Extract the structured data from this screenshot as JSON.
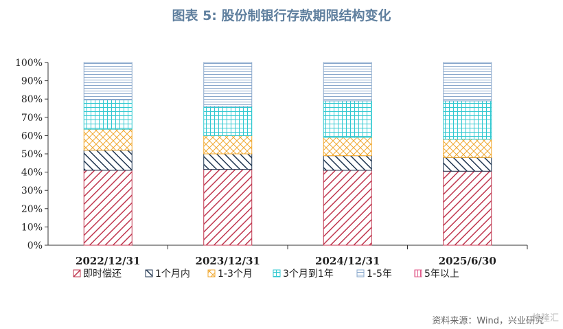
{
  "title": "图表 5:  股份制银行存款期限结构变化",
  "source": "资料来源：Wind，兴业研究",
  "watermark": "格隆汇",
  "chart_data": {
    "type": "bar",
    "stacked": true,
    "categories": [
      "2022/12/31",
      "2023/12/31",
      "2024/12/31",
      "2025/6/30"
    ],
    "ylim": [
      0,
      100
    ],
    "yticks": [
      "0%",
      "10%",
      "20%",
      "30%",
      "40%",
      "50%",
      "60%",
      "70%",
      "80%",
      "90%",
      "100%"
    ],
    "legend_position": "bottom",
    "series": [
      {
        "name": "即时偿还",
        "values": [
          41,
          41.5,
          41,
          40.5
        ],
        "color": "#c0374f",
        "pattern": "diag-down"
      },
      {
        "name": "1个月内",
        "values": [
          11,
          8.5,
          8,
          7.5
        ],
        "color": "#1f3550",
        "pattern": "diag-up"
      },
      {
        "name": "1-3个月",
        "values": [
          11.5,
          10,
          10,
          10
        ],
        "color": "#f0a830",
        "pattern": "crosshatch"
      },
      {
        "name": "3个月到1年",
        "values": [
          16,
          16,
          20,
          21
        ],
        "color": "#30c8d0",
        "pattern": "grid"
      },
      {
        "name": "1-5年",
        "values": [
          20.5,
          24,
          21,
          21
        ],
        "color": "#8aa8cc",
        "pattern": "hlines"
      },
      {
        "name": "5年以上",
        "values": [
          0,
          0,
          0,
          0
        ],
        "color": "#e05a8a",
        "pattern": "vlines"
      }
    ]
  }
}
